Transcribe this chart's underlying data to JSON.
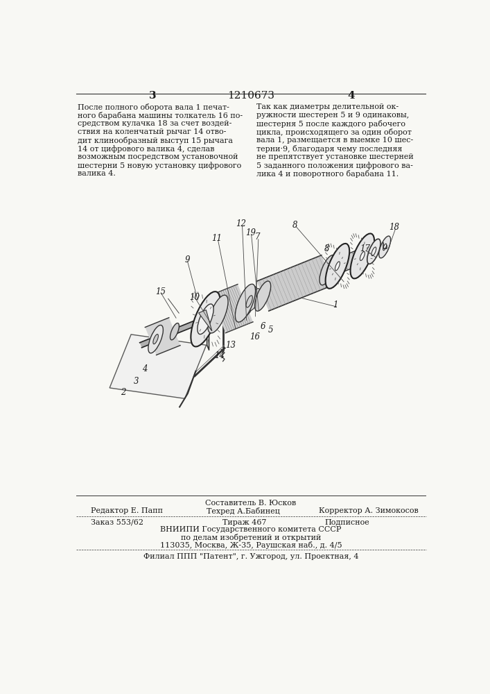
{
  "bg_color": "#f8f8f4",
  "page_color": "#f8f8f4",
  "header_num_left": "3",
  "header_patent": "1210673",
  "header_num_right": "4",
  "col_left_text": [
    "После полного оборота вала 1 печат-",
    "ного барабана машины толкатель 16 по-",
    "средством кулачка 18 за счет воздей-",
    "ствия на коленчатый рычаг 14 отво-",
    "дит клинообразный выступ 15 рычага",
    "14 от цифрового валика 4, сделав",
    "возможным посредством установочной",
    "шестерни 5 новую установку цифрового",
    "валика 4."
  ],
  "col_right_text": [
    "Так как диаметры делительной ок-",
    "ружности шестерен 5 и 9 одинаковы,",
    "шестерня 5 после каждого рабочего",
    "цикла, происходящего за один оборот",
    "вала 1, размещается в выемке 10 шес-",
    "терни·9, благодаря чему последняя",
    "не препятствует установке шестерней",
    "5 заданного положения цифрового ва-",
    "лика 4 и поворотного барабана 11."
  ],
  "footer_line1_left": "Редактор Е. Папп",
  "footer_line1_center_top": "Составитель В. Юсков",
  "footer_line1_center2": "Техред А.Бабинец",
  "footer_line1_right": "Корректор А. Зимокосов",
  "footer_line2_left": "Заказ 553/62",
  "footer_line2_center": "Тираж 467",
  "footer_line2_right": "Подписное",
  "footer_line3": "ВНИИПИ Государственного комитета СССР",
  "footer_line4": "по делам изобретений и открытий",
  "footer_line5": "113035, Москва, Ж-35, Раушская наб., д. 4/5",
  "footer_line6": "Филиал ППП \"Патент\", г. Ужгород, ул. Проектная, 4",
  "text_color": "#1a1a1a",
  "line_color": "#333333"
}
